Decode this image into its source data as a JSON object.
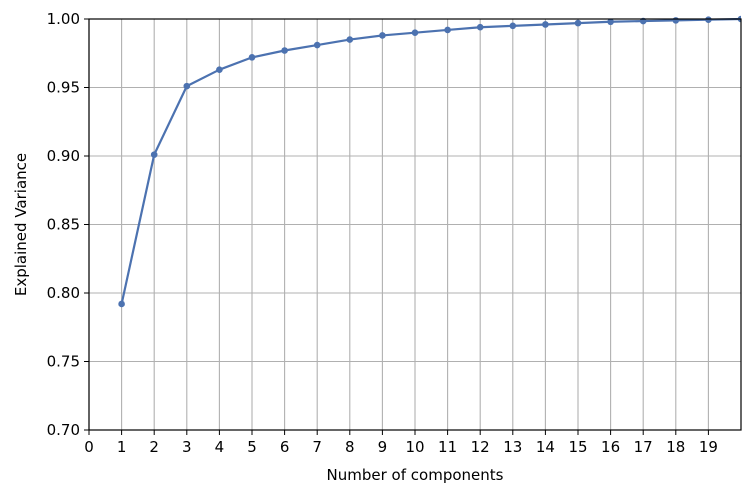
{
  "chart_data": {
    "type": "line",
    "title": "",
    "xlabel": "Number of components",
    "ylabel": "Explained Variance",
    "xlim": [
      0,
      20
    ],
    "ylim": [
      0.7,
      1.0
    ],
    "x_ticks": [
      0,
      1,
      2,
      3,
      4,
      5,
      6,
      7,
      8,
      9,
      10,
      11,
      12,
      13,
      14,
      15,
      16,
      17,
      18,
      19
    ],
    "y_ticks": [
      0.7,
      0.75,
      0.8,
      0.85,
      0.9,
      0.95,
      1.0
    ],
    "y_tick_labels": [
      "0.70",
      "0.75",
      "0.80",
      "0.85",
      "0.90",
      "0.95",
      "1.00"
    ],
    "grid": true,
    "series": [
      {
        "color": "#4c72b0",
        "marker": "circle",
        "x": [
          1,
          2,
          3,
          4,
          5,
          6,
          7,
          8,
          9,
          10,
          11,
          12,
          13,
          14,
          15,
          16,
          17,
          18,
          19,
          20
        ],
        "values": [
          0.792,
          0.901,
          0.951,
          0.963,
          0.972,
          0.977,
          0.981,
          0.985,
          0.988,
          0.99,
          0.992,
          0.994,
          0.995,
          0.996,
          0.997,
          0.998,
          0.9985,
          0.999,
          0.9995,
          1.0
        ]
      }
    ]
  }
}
